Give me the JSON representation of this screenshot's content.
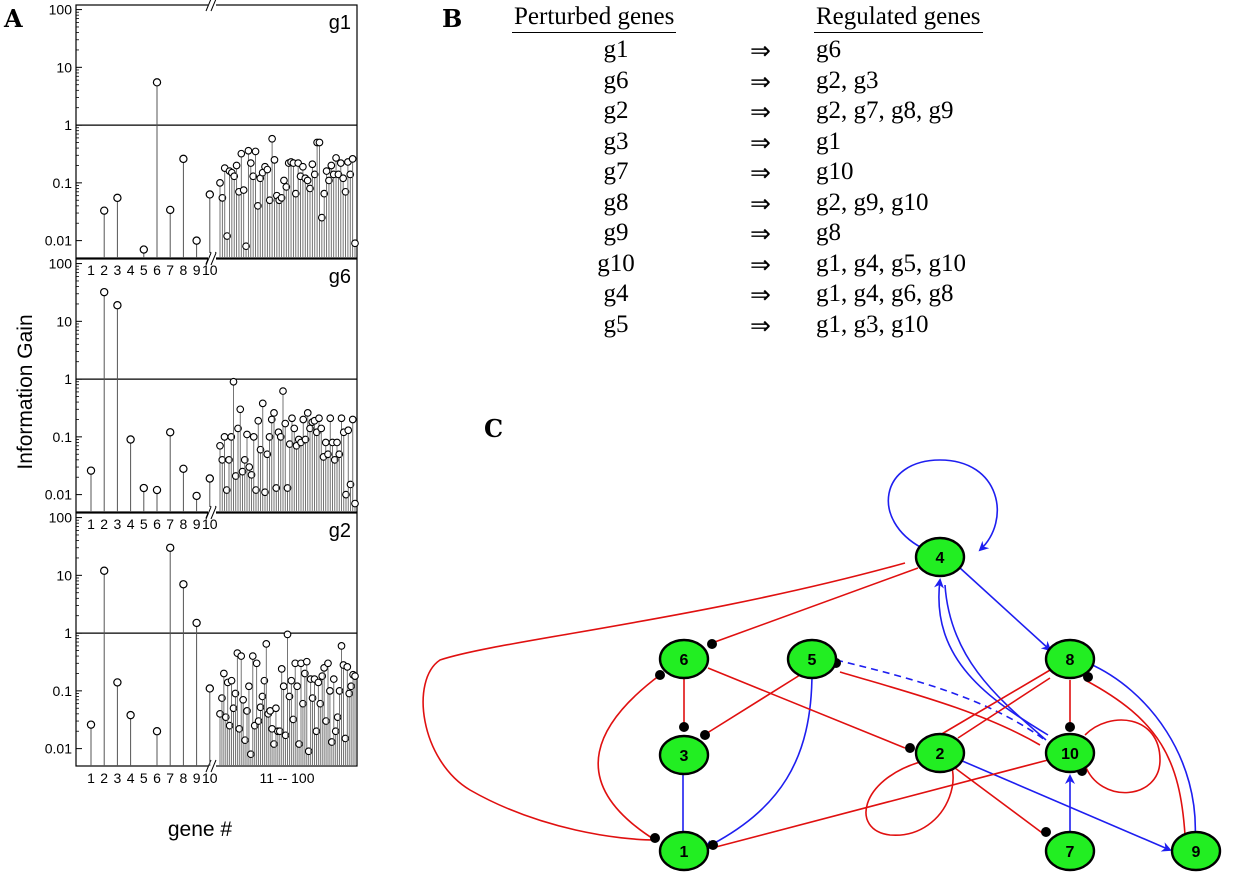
{
  "panel_labels": {
    "a": "A",
    "b": "B",
    "c": "C"
  },
  "chart_data": [
    {
      "type": "scatter",
      "panel": "g1",
      "ylabel": "Information Gain",
      "xlabel": "gene #",
      "yscale": "log",
      "ylim": [
        0.005,
        120
      ],
      "y_ticks": [
        "0.01",
        "0.1",
        "1",
        "10",
        "100"
      ],
      "x_ticks": [
        "1",
        "2",
        "3",
        "4",
        "5",
        "6",
        "7",
        "8",
        "9",
        "10"
      ],
      "x_group_label": "",
      "threshold": 1,
      "genes": [
        1,
        2,
        3,
        4,
        5,
        6,
        7,
        8,
        9,
        10
      ],
      "values": [
        null,
        0.033,
        0.055,
        null,
        0.007,
        5.5,
        0.034,
        0.26,
        0.01,
        0.063
      ],
      "other_values": [
        0.1,
        0.055,
        0.18,
        0.012,
        0.16,
        0.15,
        0.13,
        0.2,
        0.07,
        0.32,
        0.075,
        0.008,
        0.36,
        0.22,
        0.13,
        0.35,
        0.04,
        0.12,
        0.15,
        0.19,
        0.17,
        0.05,
        0.58,
        0.25,
        0.06,
        0.05,
        0.055,
        0.11,
        0.085,
        0.22,
        0.23,
        0.22,
        0.065,
        0.22,
        0.13,
        0.19,
        0.12,
        0.11,
        0.08,
        0.21,
        0.14,
        0.5,
        0.5,
        0.025,
        0.065,
        0.16,
        0.11,
        0.2,
        0.14,
        0.27,
        0.14,
        0.22,
        0.12,
        0.07,
        0.23,
        0.14,
        0.26,
        0.009
      ]
    },
    {
      "type": "scatter",
      "panel": "g6",
      "yscale": "log",
      "ylim": [
        0.005,
        120
      ],
      "y_ticks": [
        "0.01",
        "0.1",
        "1",
        "10",
        "100"
      ],
      "x_ticks": [
        "1",
        "2",
        "3",
        "4",
        "5",
        "6",
        "7",
        "8",
        "9",
        "10"
      ],
      "x_group_label": "",
      "threshold": 1,
      "genes": [
        1,
        2,
        3,
        4,
        5,
        6,
        7,
        8,
        9,
        10
      ],
      "values": [
        0.026,
        32,
        19,
        0.09,
        0.013,
        0.012,
        0.12,
        0.028,
        0.0095,
        0.019
      ],
      "other_values": [
        0.07,
        0.04,
        0.1,
        0.012,
        0.04,
        0.1,
        0.9,
        0.021,
        0.14,
        0.3,
        0.025,
        0.04,
        0.11,
        0.03,
        0.022,
        0.1,
        0.012,
        0.19,
        0.06,
        0.38,
        0.011,
        0.05,
        0.1,
        0.2,
        0.26,
        0.013,
        0.12,
        0.1,
        0.62,
        0.17,
        0.013,
        0.075,
        0.21,
        0.14,
        0.07,
        0.09,
        0.08,
        0.2,
        0.09,
        0.26,
        0.14,
        0.18,
        0.19,
        0.12,
        0.21,
        0.14,
        0.045,
        0.08,
        0.05,
        0.21,
        0.08,
        0.04,
        0.08,
        0.05,
        0.21,
        0.12,
        0.01,
        0.13,
        0.015,
        0.2,
        0.007
      ]
    },
    {
      "type": "scatter",
      "panel": "g2",
      "xlabel": "gene #",
      "yscale": "log",
      "ylim": [
        0.005,
        120
      ],
      "y_ticks": [
        "0.01",
        "0.1",
        "1",
        "10",
        "100"
      ],
      "x_ticks": [
        "1",
        "2",
        "3",
        "4",
        "5",
        "6",
        "7",
        "8",
        "9",
        "10"
      ],
      "x_group_label": "11 -- 100",
      "threshold": 1,
      "genes": [
        1,
        2,
        3,
        4,
        5,
        6,
        7,
        8,
        9,
        10
      ],
      "values": [
        0.026,
        12,
        0.14,
        0.038,
        null,
        0.02,
        30,
        7,
        1.5,
        0.11
      ],
      "other_values": [
        0.04,
        0.075,
        0.2,
        0.035,
        0.14,
        0.025,
        0.15,
        0.05,
        0.09,
        0.45,
        0.022,
        0.4,
        0.07,
        0.014,
        0.045,
        0.12,
        0.008,
        0.4,
        0.025,
        0.3,
        0.03,
        0.052,
        0.08,
        0.15,
        0.65,
        0.04,
        0.045,
        0.022,
        0.012,
        0.05,
        0.02,
        0.02,
        0.24,
        0.12,
        0.017,
        0.95,
        0.08,
        0.15,
        0.032,
        0.3,
        0.12,
        0.012,
        0.3,
        0.06,
        0.2,
        0.32,
        0.009,
        0.16,
        0.075,
        0.16,
        0.02,
        0.14,
        0.06,
        0.18,
        0.25,
        0.03,
        0.3,
        0.1,
        0.013,
        0.16,
        0.02,
        0.035,
        0.1,
        0.6,
        0.28,
        0.015,
        0.26,
        0.09,
        0.12,
        0.19,
        0.18
      ]
    }
  ],
  "table": {
    "head_perturbed": "Perturbed genes",
    "head_regulated": "Regulated genes",
    "arrow": "⇒",
    "rows": [
      {
        "perturbed": "g1",
        "regulated": "g6"
      },
      {
        "perturbed": "g6",
        "regulated": "g2, g3"
      },
      {
        "perturbed": "g2",
        "regulated": "g2, g7, g8, g9"
      },
      {
        "perturbed": "g3",
        "regulated": "g1"
      },
      {
        "perturbed": "g7",
        "regulated": "g10"
      },
      {
        "perturbed": "g8",
        "regulated": "g2, g9, g10"
      },
      {
        "perturbed": "g9",
        "regulated": "g8"
      },
      {
        "perturbed": "g10",
        "regulated": "g1, g4, g5, g10"
      },
      {
        "perturbed": "g4",
        "regulated": "g1, g4, g6, g8"
      },
      {
        "perturbed": "g5",
        "regulated": "g1, g3, g10"
      }
    ]
  },
  "network": {
    "node_color": "#22ee22",
    "activation_color": "#1e1ef0",
    "inhibition_color": "#e01010",
    "nodes": [
      "4",
      "6",
      "5",
      "8",
      "3",
      "2",
      "10",
      "1",
      "7",
      "9"
    ]
  }
}
